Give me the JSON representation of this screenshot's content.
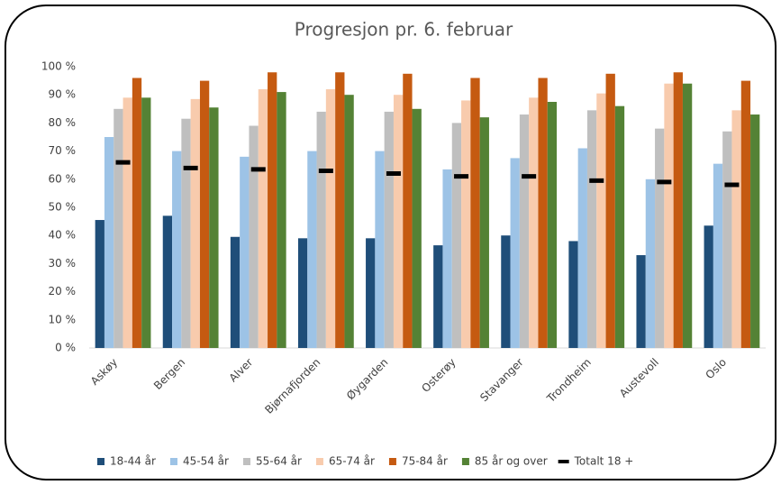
{
  "chart_data": {
    "type": "bar",
    "title": "Progresjon pr. 6. februar",
    "categories": [
      "Askøy",
      "Bergen",
      "Alver",
      "Bjørnafjorden",
      "Øygarden",
      "Osterøy",
      "Stavanger",
      "Trondheim",
      "Austevoll",
      "Oslo"
    ],
    "series": [
      {
        "name": "18-44 år",
        "color": "#1f4e79",
        "values": [
          45.5,
          47,
          39.5,
          39,
          39,
          36.5,
          40,
          38,
          33,
          43.5
        ]
      },
      {
        "name": "45-54 år",
        "color": "#9dc3e6",
        "values": [
          75,
          70,
          68,
          70,
          70,
          63.5,
          67.5,
          71,
          60,
          65.5
        ]
      },
      {
        "name": "55-64 år",
        "color": "#bfbfbf",
        "values": [
          85,
          81.5,
          79,
          84,
          84,
          80,
          83,
          84.5,
          78,
          77
        ]
      },
      {
        "name": "65-74 år",
        "color": "#f8cbad",
        "values": [
          89,
          88.5,
          92,
          92,
          90,
          88,
          89,
          90.5,
          94,
          84.5
        ]
      },
      {
        "name": "75-84 år",
        "color": "#c55a11",
        "values": [
          96,
          95,
          98,
          98,
          97.5,
          96,
          96,
          97.5,
          98,
          95
        ]
      },
      {
        "name": "85 år og over",
        "color": "#548235",
        "values": [
          89,
          85.5,
          91,
          90,
          85,
          82,
          87.5,
          86,
          94,
          83
        ]
      },
      {
        "name": "Totalt 18 +",
        "color": "#000000",
        "style": "marker",
        "values": [
          66,
          64,
          63.5,
          63,
          62,
          61,
          61,
          59.5,
          59,
          58
        ]
      }
    ],
    "ylim": [
      0,
      100
    ],
    "yticks": [
      {
        "value": 0,
        "label": "0 %"
      },
      {
        "value": 10,
        "label": "10 %"
      },
      {
        "value": 20,
        "label": "20 %"
      },
      {
        "value": 30,
        "label": "30 %"
      },
      {
        "value": 40,
        "label": "40 %"
      },
      {
        "value": 50,
        "label": "50 %"
      },
      {
        "value": 60,
        "label": "60 %"
      },
      {
        "value": 70,
        "label": "70 %"
      },
      {
        "value": 80,
        "label": "80 %"
      },
      {
        "value": 90,
        "label": "90 %"
      },
      {
        "value": 100,
        "label": "100 %"
      }
    ],
    "grid": false,
    "legend": "bottom"
  }
}
